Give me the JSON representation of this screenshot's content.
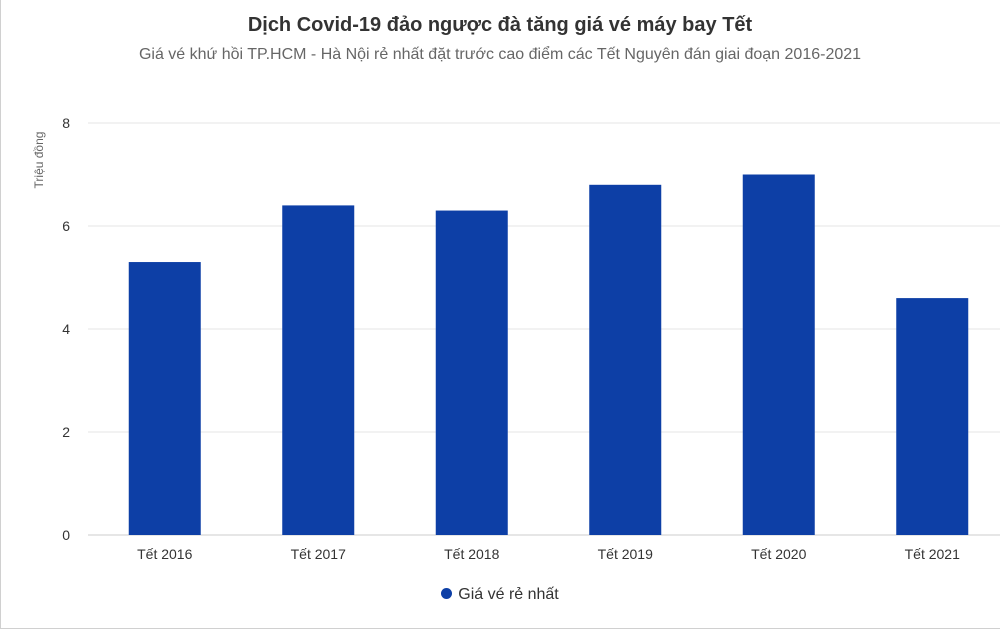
{
  "colors": {
    "bar": "#0d3fa6",
    "grid": "#e6e6e6",
    "axis_line": "#cccccc"
  },
  "chart_data": {
    "type": "bar",
    "title": "Dịch Covid-19 đảo ngược đà tăng giá vé máy bay Tết",
    "subtitle": "Giá vé khứ hồi TP.HCM - Hà Nội rẻ nhất đặt trước cao điểm các Tết Nguyên đán giai đoạn 2016-2021",
    "xlabel": "",
    "ylabel": "Triệu đồng",
    "ylim": [
      0,
      8
    ],
    "yticks": [
      0,
      2,
      4,
      6,
      8
    ],
    "grid": true,
    "legend_position": "bottom-center",
    "categories": [
      "Tết 2016",
      "Tết 2017",
      "Tết 2018",
      "Tết 2019",
      "Tết 2020",
      "Tết 2021"
    ],
    "series": [
      {
        "name": "Giá vé rẻ nhất",
        "values": [
          5.3,
          6.4,
          6.3,
          6.8,
          7.0,
          4.6
        ]
      }
    ]
  }
}
